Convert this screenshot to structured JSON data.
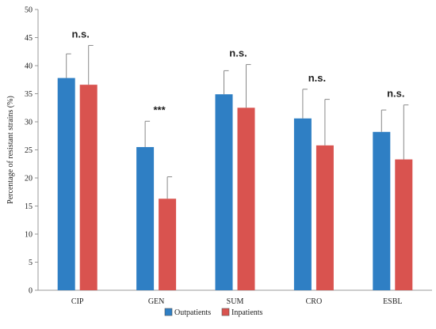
{
  "chart_data": {
    "type": "bar",
    "title": "",
    "xlabel": "",
    "ylabel": "Percentage of resistant strains (%)",
    "ylim": [
      0,
      50
    ],
    "yticks": [
      0,
      5,
      10,
      15,
      20,
      25,
      30,
      35,
      40,
      45,
      50
    ],
    "categories": [
      "CIP",
      "GEN",
      "SUM",
      "CRO",
      "ESBL"
    ],
    "series": [
      {
        "name": "Outpatients",
        "color": "#2f7fc4",
        "values": [
          37.8,
          25.5,
          34.9,
          30.6,
          28.2
        ],
        "error_plus": [
          4.3,
          4.6,
          4.2,
          5.2,
          3.9
        ]
      },
      {
        "name": "Inpatients",
        "color": "#d9534f",
        "values": [
          36.6,
          16.3,
          32.5,
          25.8,
          23.3
        ],
        "error_plus": [
          7.0,
          3.9,
          7.7,
          8.2,
          9.7
        ]
      }
    ],
    "annotations": [
      "n.s.",
      "***",
      "n.s.",
      "n.s.",
      "n.s."
    ],
    "grid": false,
    "legend_position": "bottom-center"
  }
}
